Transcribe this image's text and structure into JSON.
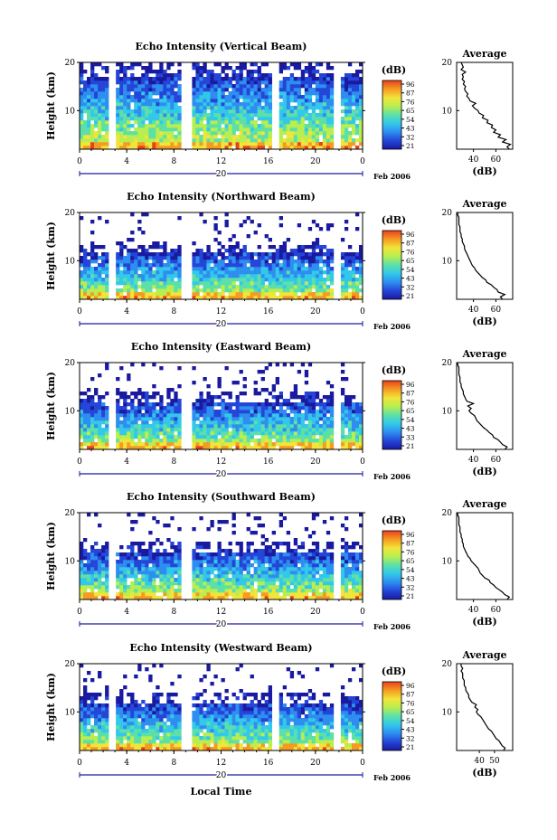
{
  "colors": {
    "colormap": [
      "#1a1aa0",
      "#2446d8",
      "#2e8ef0",
      "#33c8ea",
      "#5ce0a8",
      "#b8ee50",
      "#f2e43a",
      "#f59a22",
      "#e8401e"
    ],
    "axes": "#000000",
    "profile_line": "#000000"
  },
  "chart_data": [
    {
      "type": "heatmap",
      "title": "Echo Intensity (Vertical Beam)",
      "xlabel": "",
      "ylabel": "Height (km)",
      "x_ticks": [
        "0",
        "4",
        "8",
        "12",
        "16",
        "20",
        "0"
      ],
      "y_ticks": [
        "10",
        "20"
      ],
      "xlim": [
        0,
        24
      ],
      "ylim": [
        2,
        20
      ],
      "colorbar_label": "(dB)",
      "colorbar_ticks": [
        "96",
        "87",
        "76",
        "65",
        "54",
        "43",
        "32",
        "21"
      ],
      "date_day": "20",
      "date_month": "Feb 2006",
      "gaps_hours": [
        2.8,
        9.1,
        16.6,
        21.8
      ],
      "echo_top_km": 20,
      "profile": {
        "title": "Average",
        "xlabel": "(dB)",
        "x_ticks": [
          "40",
          "60"
        ],
        "y_ticks": [
          "10",
          "20"
        ],
        "xlim": [
          25,
          75
        ],
        "height_km": [
          2,
          2.5,
          3,
          3.5,
          4,
          4.5,
          5,
          5.5,
          6,
          6.5,
          7,
          7.5,
          8,
          8.5,
          9,
          9.5,
          10,
          10.5,
          11,
          11.5,
          12,
          12.5,
          13,
          13.5,
          14,
          14.5,
          15,
          15.5,
          16,
          16.5,
          17,
          17.5,
          18,
          18.5,
          19,
          19.5,
          20
        ],
        "db": [
          72,
          70,
          73,
          66,
          69,
          62,
          64,
          58,
          60,
          56,
          57,
          52,
          53,
          48,
          49,
          45,
          44,
          41,
          39,
          42,
          37,
          36,
          34,
          35,
          33,
          32,
          33,
          31,
          32,
          30,
          31,
          30,
          33,
          29,
          31,
          30,
          29
        ]
      }
    },
    {
      "type": "heatmap",
      "title": "Echo Intensity (Northward Beam)",
      "xlabel": "",
      "ylabel": "Height (km)",
      "x_ticks": [
        "0",
        "4",
        "8",
        "12",
        "16",
        "20",
        "0"
      ],
      "y_ticks": [
        "10",
        "20"
      ],
      "xlim": [
        0,
        24
      ],
      "ylim": [
        2,
        20
      ],
      "colorbar_label": "(dB)",
      "colorbar_ticks": [
        "96",
        "87",
        "76",
        "65",
        "54",
        "43",
        "32",
        "21"
      ],
      "date_day": "20",
      "date_month": "Feb 2006",
      "gaps_hours": [
        2.8,
        9.1,
        21.8
      ],
      "echo_top_km": 13.5,
      "profile": {
        "title": "Average",
        "xlabel": "(dB)",
        "x_ticks": [
          "40",
          "60"
        ],
        "y_ticks": [
          "10",
          "20"
        ],
        "xlim": [
          25,
          75
        ],
        "height_km": [
          2,
          2.5,
          3,
          3.5,
          4,
          4.5,
          5,
          5.5,
          6,
          6.5,
          7,
          7.5,
          8,
          8.5,
          9,
          9.5,
          10,
          10.5,
          11,
          11.5,
          12,
          12.5,
          13,
          13.5,
          14,
          14.5,
          15,
          15.5,
          16,
          16.5,
          17,
          17.5,
          18,
          18.5,
          19,
          19.5,
          20
        ],
        "db": [
          66,
          64,
          68,
          62,
          61,
          58,
          56,
          52,
          51,
          48,
          46,
          44,
          42,
          41,
          39,
          38,
          37,
          36,
          35,
          34,
          33,
          32,
          32,
          31,
          30,
          30,
          29,
          29,
          28,
          28,
          28,
          27,
          27,
          27,
          27,
          26,
          26
        ]
      }
    },
    {
      "type": "heatmap",
      "title": "Echo Intensity (Eastward Beam)",
      "xlabel": "",
      "ylabel": "Height (km)",
      "x_ticks": [
        "0",
        "4",
        "8",
        "12",
        "16",
        "20",
        "0"
      ],
      "y_ticks": [
        "10",
        "20"
      ],
      "xlim": [
        0,
        24
      ],
      "ylim": [
        2,
        20
      ],
      "colorbar_label": "(dB)",
      "colorbar_ticks": [
        "96",
        "87",
        "76",
        "65",
        "54",
        "43",
        "33",
        "21"
      ],
      "date_day": "20",
      "date_month": "Feb 2006",
      "gaps_hours": [
        2.8,
        9.1,
        21.8
      ],
      "echo_top_km": 14,
      "profile": {
        "title": "Average",
        "xlabel": "(dB)",
        "x_ticks": [
          "40",
          "60"
        ],
        "y_ticks": [
          "10",
          "20"
        ],
        "xlim": [
          25,
          75
        ],
        "height_km": [
          2,
          2.5,
          3,
          3.5,
          4,
          4.5,
          5,
          5.5,
          6,
          6.5,
          7,
          7.5,
          8,
          8.5,
          9,
          9.5,
          10,
          10.5,
          11,
          11.5,
          12,
          12.5,
          13,
          13.5,
          14,
          14.5,
          15,
          15.5,
          16,
          16.5,
          17,
          17.5,
          18,
          18.5,
          19,
          19.5,
          20
        ],
        "db": [
          68,
          70,
          66,
          64,
          62,
          58,
          57,
          54,
          52,
          49,
          47,
          45,
          43,
          42,
          41,
          38,
          36,
          38,
          35,
          40,
          34,
          33,
          32,
          31,
          31,
          30,
          29,
          29,
          28,
          28,
          28,
          27,
          27,
          27,
          27,
          26,
          26
        ]
      }
    },
    {
      "type": "heatmap",
      "title": "Echo Intensity (Southward Beam)",
      "xlabel": "",
      "ylabel": "Height (km)",
      "x_ticks": [
        "0",
        "4",
        "8",
        "12",
        "16",
        "20",
        "0"
      ],
      "y_ticks": [
        "10",
        "20"
      ],
      "xlim": [
        0,
        24
      ],
      "ylim": [
        2,
        20
      ],
      "colorbar_label": "(dB)",
      "colorbar_ticks": [
        "96",
        "87",
        "76",
        "65",
        "54",
        "43",
        "32",
        "21"
      ],
      "date_day": "20",
      "date_month": "Feb 2006",
      "gaps_hours": [
        2.8,
        9.1,
        21.8
      ],
      "echo_top_km": 14,
      "profile": {
        "title": "Average",
        "xlabel": "(dB)",
        "x_ticks": [
          "40",
          "60"
        ],
        "y_ticks": [
          "10",
          "20"
        ],
        "xlim": [
          25,
          75
        ],
        "height_km": [
          2,
          2.5,
          3,
          3.5,
          4,
          4.5,
          5,
          5.5,
          6,
          6.5,
          7,
          7.5,
          8,
          8.5,
          9,
          9.5,
          10,
          10.5,
          11,
          11.5,
          12,
          12.5,
          13,
          13.5,
          14,
          14.5,
          15,
          15.5,
          16,
          16.5,
          17,
          17.5,
          18,
          18.5,
          19,
          19.5,
          20
        ],
        "db": [
          70,
          72,
          68,
          66,
          63,
          60,
          58,
          55,
          54,
          50,
          48,
          46,
          45,
          44,
          42,
          40,
          38,
          37,
          35,
          34,
          33,
          32,
          31,
          31,
          30,
          30,
          29,
          29,
          28,
          28,
          28,
          27,
          27,
          27,
          27,
          26,
          26
        ]
      }
    },
    {
      "type": "heatmap",
      "title": "Echo Intensity (Westward Beam)",
      "xlabel": "Local Time",
      "ylabel": "Height (km)",
      "x_ticks": [
        "0",
        "4",
        "8",
        "12",
        "16",
        "20",
        "0"
      ],
      "y_ticks": [
        "10",
        "20"
      ],
      "xlim": [
        0,
        24
      ],
      "ylim": [
        2,
        20
      ],
      "colorbar_label": "(dB)",
      "colorbar_ticks": [
        "96",
        "87",
        "76",
        "65",
        "54",
        "43",
        "32",
        "21"
      ],
      "date_day": "20",
      "date_month": "Feb 2006",
      "gaps_hours": [
        2.8,
        9.1,
        16.6,
        21.8
      ],
      "echo_top_km": 14,
      "profile": {
        "title": "Average",
        "xlabel": "(dB)",
        "x_ticks": [
          "40",
          "50"
        ],
        "y_ticks": [
          "10",
          "20"
        ],
        "xlim": [
          25,
          62
        ],
        "height_km": [
          2,
          2.5,
          3,
          3.5,
          4,
          4.5,
          5,
          5.5,
          6,
          6.5,
          7,
          7.5,
          8,
          8.5,
          9,
          9.5,
          10,
          10.5,
          11,
          11.5,
          12,
          12.5,
          13,
          13.5,
          14,
          14.5,
          15,
          15.5,
          16,
          16.5,
          17,
          17.5,
          18,
          18.5,
          19,
          19.5,
          20
        ],
        "db": [
          56,
          57,
          55,
          54,
          53,
          51,
          50,
          49,
          48,
          46,
          45,
          44,
          43,
          42,
          41,
          39,
          38,
          39,
          37,
          38,
          35,
          34,
          33,
          33,
          32,
          31,
          31,
          30,
          30,
          30,
          29,
          29,
          29,
          28,
          29,
          28,
          28
        ]
      }
    }
  ]
}
